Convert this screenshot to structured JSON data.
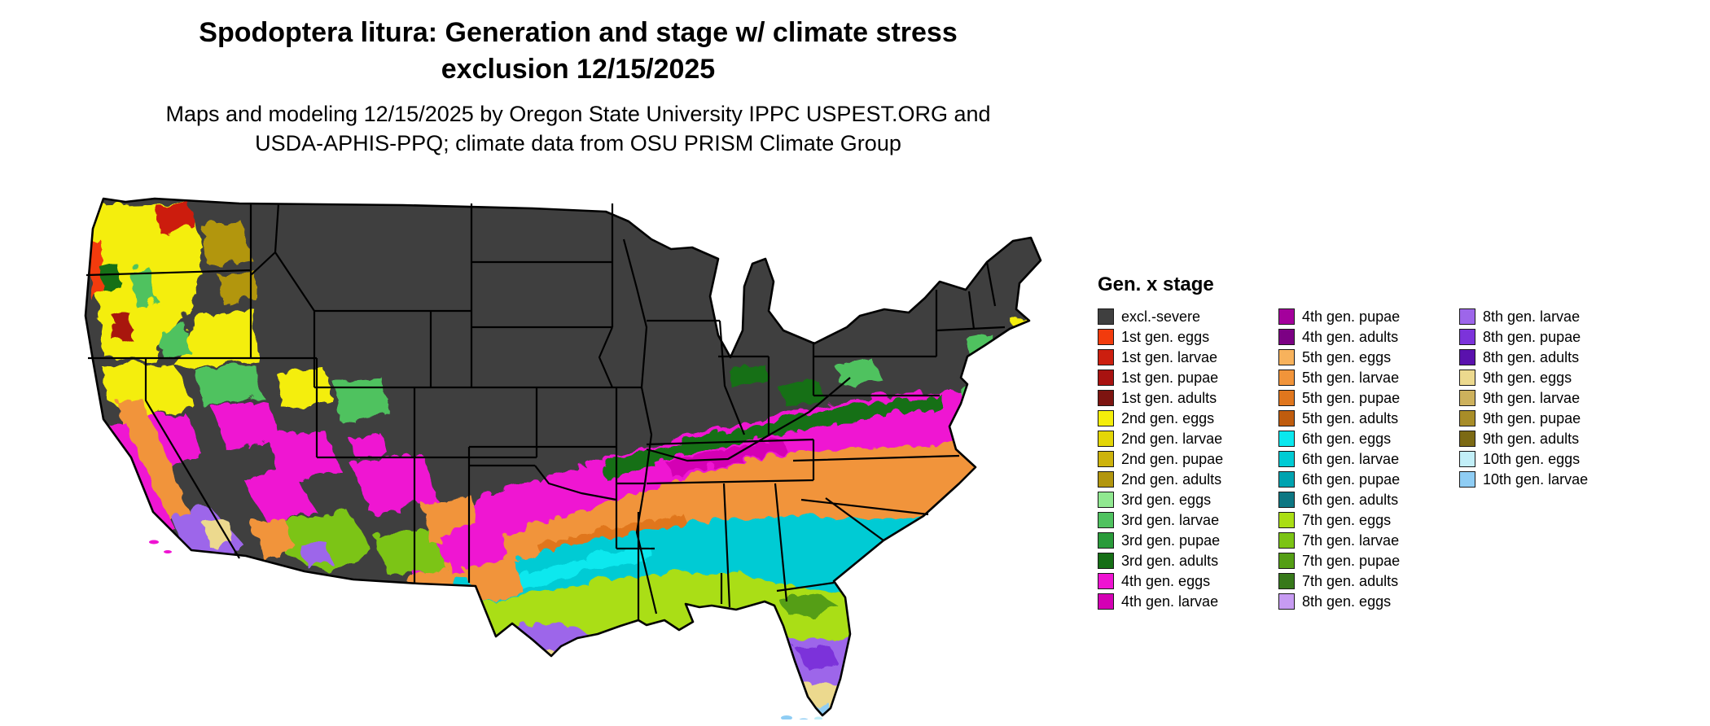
{
  "title": {
    "line1": "Spodoptera litura: Generation and stage w/ climate stress",
    "line2": "exclusion 12/15/2025"
  },
  "subtitle": {
    "line1": "Maps and modeling 12/15/2025 by Oregon State University IPPC USPEST.ORG and",
    "line2": "USDA-APHIS-PPQ; climate data from OSU PRISM Climate Group"
  },
  "legend": {
    "title": "Gen. x stage",
    "columns": [
      [
        {
          "label": "excl.-severe",
          "color": "excl_severe"
        },
        {
          "label": "1st gen. eggs",
          "color": "g1_eggs"
        },
        {
          "label": "1st gen. larvae",
          "color": "g1_larvae"
        },
        {
          "label": "1st gen. pupae",
          "color": "g1_pupae"
        },
        {
          "label": "1st gen. adults",
          "color": "g1_adults"
        },
        {
          "label": "2nd gen. eggs",
          "color": "g2_eggs"
        },
        {
          "label": "2nd gen. larvae",
          "color": "g2_larvae"
        },
        {
          "label": "2nd gen. pupae",
          "color": "g2_pupae"
        },
        {
          "label": "2nd gen. adults",
          "color": "g2_adults"
        },
        {
          "label": "3rd gen. eggs",
          "color": "g3_eggs"
        },
        {
          "label": "3rd gen. larvae",
          "color": "g3_larvae"
        },
        {
          "label": "3rd gen. pupae",
          "color": "g3_pupae"
        },
        {
          "label": "3rd gen. adults",
          "color": "g3_adults"
        },
        {
          "label": "4th gen. eggs",
          "color": "g4_eggs"
        },
        {
          "label": "4th gen. larvae",
          "color": "g4_larvae"
        }
      ],
      [
        {
          "label": "4th gen. pupae",
          "color": "g4_pupae"
        },
        {
          "label": "4th gen. adults",
          "color": "g4_adults"
        },
        {
          "label": "5th gen. eggs",
          "color": "g5_eggs"
        },
        {
          "label": "5th gen. larvae",
          "color": "g5_larvae"
        },
        {
          "label": "5th gen. pupae",
          "color": "g5_pupae"
        },
        {
          "label": "5th gen. adults",
          "color": "g5_adults"
        },
        {
          "label": "6th gen. eggs",
          "color": "g6_eggs"
        },
        {
          "label": "6th gen. larvae",
          "color": "g6_larvae"
        },
        {
          "label": "6th gen. pupae",
          "color": "g6_pupae"
        },
        {
          "label": "6th gen. adults",
          "color": "g6_adults"
        },
        {
          "label": "7th gen. eggs",
          "color": "g7_eggs"
        },
        {
          "label": "7th gen. larvae",
          "color": "g7_larvae"
        },
        {
          "label": "7th gen. pupae",
          "color": "g7_pupae"
        },
        {
          "label": "7th gen. adults",
          "color": "g7_adults"
        },
        {
          "label": "8th gen. eggs",
          "color": "g8_eggs"
        }
      ],
      [
        {
          "label": "8th gen. larvae",
          "color": "g8_larvae"
        },
        {
          "label": "8th gen. pupae",
          "color": "g8_pupae"
        },
        {
          "label": "8th gen. adults",
          "color": "g8_adults"
        },
        {
          "label": "9th gen. eggs",
          "color": "g9_eggs"
        },
        {
          "label": "9th gen. larvae",
          "color": "g9_larvae"
        },
        {
          "label": "9th gen. pupae",
          "color": "g9_pupae"
        },
        {
          "label": "9th gen. adults",
          "color": "g9_adults"
        },
        {
          "label": "10th gen. eggs",
          "color": "g10_eggs"
        },
        {
          "label": "10th gen. larvae",
          "color": "g10_larvae"
        }
      ]
    ]
  },
  "colors": {
    "excl_severe": "#3f3f3f",
    "g1_eggs": "#f23b0d",
    "g1_larvae": "#cc1f0f",
    "g1_pupae": "#a81210",
    "g1_adults": "#7d1410",
    "g2_eggs": "#f4ee0a",
    "g2_larvae": "#e3d606",
    "g2_pupae": "#cdb30c",
    "g2_adults": "#b2960e",
    "g3_eggs": "#90e890",
    "g3_larvae": "#4fc25f",
    "g3_pupae": "#2a9b3a",
    "g3_adults": "#156f15",
    "g4_eggs": "#ef13d2",
    "g4_larvae": "#d400b4",
    "g4_pupae": "#a4009c",
    "g4_adults": "#7c0084",
    "g5_eggs": "#f7b25c",
    "g5_larvae": "#f1943a",
    "g5_pupae": "#e0761d",
    "g5_adults": "#bf5c0e",
    "g6_eggs": "#0ae8ee",
    "g6_larvae": "#00cbd4",
    "g6_pupae": "#00a3b0",
    "g6_adults": "#0d7783",
    "g7_eggs": "#aade14",
    "g7_larvae": "#7cc414",
    "g7_pupae": "#549e14",
    "g7_adults": "#37791a",
    "g8_eggs": "#c79bf2",
    "g8_larvae": "#9d66ea",
    "g8_pupae": "#7c33da",
    "g8_adults": "#5a11ad",
    "g9_eggs": "#ecd98e",
    "g9_larvae": "#cdb15c",
    "g9_pupae": "#a88d28",
    "g9_adults": "#7c6a14",
    "g10_eggs": "#c2eff8",
    "g10_larvae": "#8fcdf4"
  }
}
